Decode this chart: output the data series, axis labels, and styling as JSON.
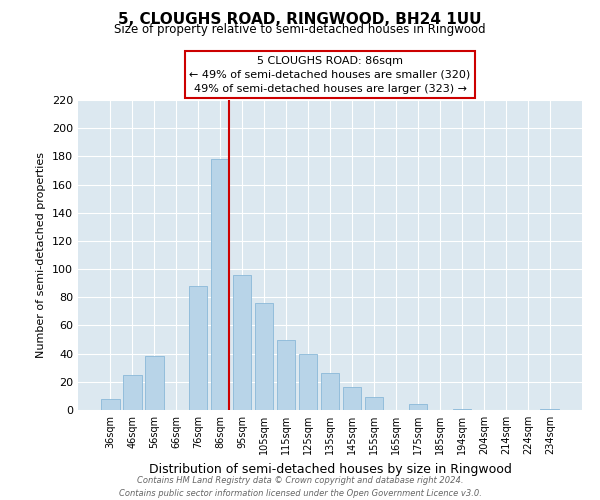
{
  "title": "5, CLOUGHS ROAD, RINGWOOD, BH24 1UU",
  "subtitle": "Size of property relative to semi-detached houses in Ringwood",
  "xlabel": "Distribution of semi-detached houses by size in Ringwood",
  "ylabel": "Number of semi-detached properties",
  "bar_labels": [
    "36sqm",
    "46sqm",
    "56sqm",
    "66sqm",
    "76sqm",
    "86sqm",
    "95sqm",
    "105sqm",
    "115sqm",
    "125sqm",
    "135sqm",
    "145sqm",
    "155sqm",
    "165sqm",
    "175sqm",
    "185sqm",
    "194sqm",
    "204sqm",
    "214sqm",
    "224sqm",
    "234sqm"
  ],
  "bar_values": [
    8,
    25,
    38,
    0,
    88,
    178,
    96,
    76,
    50,
    40,
    26,
    16,
    9,
    0,
    4,
    0,
    1,
    0,
    0,
    0,
    1
  ],
  "bar_color": "#b8d4e8",
  "highlight_index": 5,
  "highlight_line_color": "#cc0000",
  "annotation_title": "5 CLOUGHS ROAD: 86sqm",
  "annotation_line1": "← 49% of semi-detached houses are smaller (320)",
  "annotation_line2": "49% of semi-detached houses are larger (323) →",
  "annotation_box_color": "#ffffff",
  "annotation_box_edge": "#cc0000",
  "ylim": [
    0,
    220
  ],
  "yticks": [
    0,
    20,
    40,
    60,
    80,
    100,
    120,
    140,
    160,
    180,
    200,
    220
  ],
  "footer1": "Contains HM Land Registry data © Crown copyright and database right 2024.",
  "footer2": "Contains public sector information licensed under the Open Government Licence v3.0."
}
